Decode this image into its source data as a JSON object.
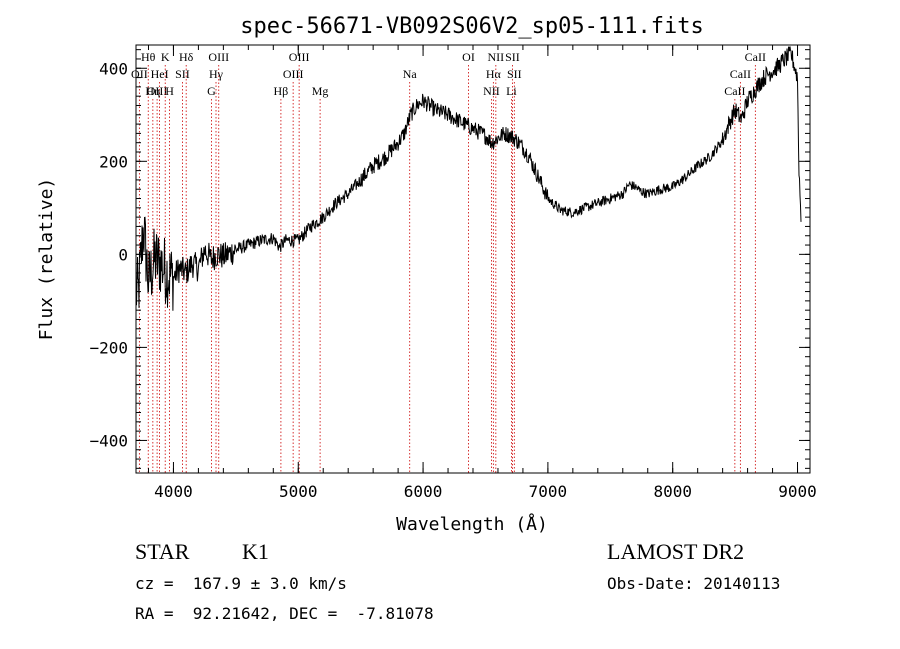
{
  "chart_data": {
    "type": "line",
    "title": "spec-56671-VB092S06V2_sp05-111.fits",
    "xlabel": "Wavelength (Å)",
    "ylabel": "Flux (relative)",
    "xlim": [
      3700,
      9100
    ],
    "ylim": [
      -470,
      450
    ],
    "x_ticks": [
      4000,
      5000,
      6000,
      7000,
      8000,
      9000
    ],
    "y_ticks": [
      -400,
      -200,
      0,
      200,
      400
    ],
    "x_tick_labels": [
      "4000",
      "5000",
      "6000",
      "7000",
      "8000",
      "9000"
    ],
    "y_tick_labels": [
      "−400",
      "−200",
      "0",
      "200",
      "400"
    ],
    "grid": false,
    "series": [
      {
        "x": [
          3720,
          3760,
          3800,
          3850,
          3900,
          3950,
          4000,
          4050,
          4100,
          4150,
          4200,
          4250,
          4300,
          4350,
          4400,
          4500,
          4600,
          4700,
          4800,
          4850,
          4900,
          5000,
          5100,
          5200,
          5300,
          5400,
          5500,
          5600,
          5700,
          5800,
          5850,
          5900,
          5950,
          6000,
          6050,
          6100,
          6200,
          6300,
          6400,
          6500,
          6550,
          6600,
          6650,
          6700,
          6750,
          6800,
          6850,
          6900,
          6950,
          7000,
          7100,
          7200,
          7300,
          7400,
          7500,
          7600,
          7650,
          7700,
          7750,
          7800,
          7900,
          8000,
          8100,
          8200,
          8300,
          8400,
          8450,
          8500,
          8550,
          8600,
          8650,
          8700,
          8750,
          8800,
          8850,
          8900,
          8950,
          9000,
          9010,
          9030
        ],
        "y": [
          -80,
          60,
          -60,
          -10,
          -20,
          -40,
          -50,
          -30,
          -40,
          -20,
          -30,
          10,
          -10,
          0,
          -5,
          10,
          20,
          30,
          35,
          15,
          30,
          30,
          60,
          80,
          110,
          130,
          160,
          190,
          210,
          240,
          260,
          300,
          320,
          330,
          320,
          310,
          300,
          285,
          270,
          255,
          240,
          250,
          260,
          255,
          245,
          230,
          210,
          180,
          150,
          120,
          95,
          90,
          100,
          110,
          120,
          130,
          150,
          145,
          135,
          130,
          140,
          145,
          165,
          190,
          210,
          245,
          280,
          310,
          290,
          330,
          350,
          370,
          385,
          395,
          405,
          420,
          430,
          380,
          200,
          60
        ]
      }
    ],
    "lines": [
      {
        "label": "Hθ",
        "x": 3798,
        "row": 1
      },
      {
        "label": "OII",
        "x": 3727,
        "row": 2
      },
      {
        "label": "OIII",
        "x": 3869,
        "row": 3
      },
      {
        "label": "K",
        "x": 3934,
        "row": 1
      },
      {
        "label": "HeI",
        "x": 3889,
        "row": 2
      },
      {
        "label": "Hη",
        "x": 3835,
        "row": 3
      },
      {
        "label": "H",
        "x": 3969,
        "row": 3
      },
      {
        "label": "SII",
        "x": 4072,
        "row": 2
      },
      {
        "label": "Hδ",
        "x": 4102,
        "row": 1
      },
      {
        "label": "OIII",
        "x": 4363,
        "row": 1
      },
      {
        "label": "Hγ",
        "x": 4341,
        "row": 2
      },
      {
        "label": "G",
        "x": 4305,
        "row": 3
      },
      {
        "label": "Hβ",
        "x": 4861,
        "row": 3
      },
      {
        "label": "OIII",
        "x": 5007,
        "row": 1
      },
      {
        "label": "OIII",
        "x": 4959,
        "row": 2
      },
      {
        "label": "Mg",
        "x": 5175,
        "row": 3
      },
      {
        "label": "Na",
        "x": 5893,
        "row": 2
      },
      {
        "label": "OI",
        "x": 6364,
        "row": 1
      },
      {
        "label": "NII",
        "x": 6583,
        "row": 1
      },
      {
        "label": "Hα",
        "x": 6563,
        "row": 2
      },
      {
        "label": "NII",
        "x": 6548,
        "row": 3
      },
      {
        "label": "SII",
        "x": 6716,
        "row": 1
      },
      {
        "label": "SII",
        "x": 6731,
        "row": 2
      },
      {
        "label": "Li",
        "x": 6708,
        "row": 3
      },
      {
        "label": "CaII",
        "x": 8662,
        "row": 1
      },
      {
        "label": "CaII",
        "x": 8542,
        "row": 2
      },
      {
        "label": "CaII",
        "x": 8498,
        "row": 3
      }
    ]
  },
  "info": {
    "class_type": "STAR",
    "subclass": "K1",
    "survey": "LAMOST DR2",
    "redshift": "cz =  167.9 ± 3.0 km/s",
    "obs_date": "Obs-Date: 20140113",
    "coords": "RA =  92.21642, DEC =  -7.81078"
  }
}
